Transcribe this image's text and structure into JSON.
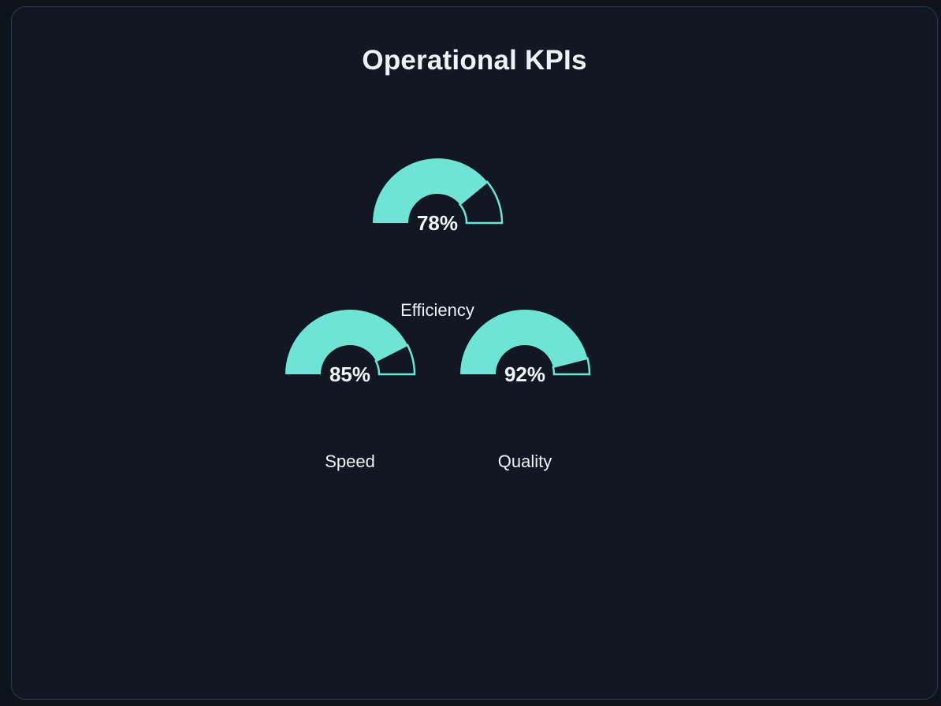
{
  "title": "Operational KPIs",
  "colors": {
    "gauge_fill": "#6ee3d6",
    "gauge_outline": "#6ee3d6",
    "background": "#111823",
    "text": "#eef2f6"
  },
  "chart_data": {
    "type": "gauge",
    "title": "Operational KPIs",
    "range": [
      0,
      100
    ],
    "unit": "%",
    "gauges": [
      {
        "label": "Efficiency",
        "value": 78,
        "display": "78%"
      },
      {
        "label": "Speed",
        "value": 85,
        "display": "85%"
      },
      {
        "label": "Quality",
        "value": 92,
        "display": "92%"
      }
    ]
  }
}
